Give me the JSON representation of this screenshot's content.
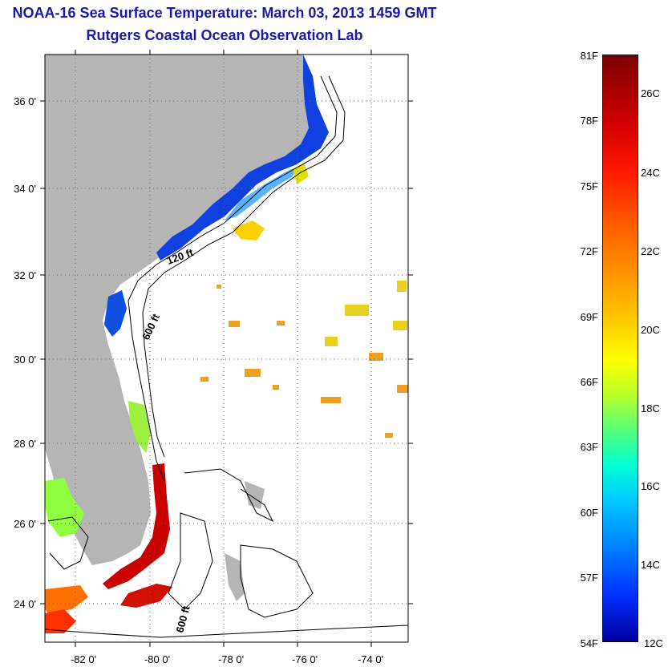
{
  "title": {
    "line1": "NOAA-16 Sea Surface Temperature:  March 03, 2013 1459 GMT",
    "line2": "Rutgers Coastal Ocean Observation Lab"
  },
  "map": {
    "y_ticks": [
      "36 0'",
      "34 0'",
      "32 0'",
      "30 0'",
      "28 0'",
      "26 0'",
      "24 0'"
    ],
    "x_ticks": [
      "-82 0'",
      "-80 0'",
      "-78 0'",
      "-76 0'",
      "-74 0'"
    ],
    "contour_labels": {
      "c120": "120 ft",
      "c600a": "600 ft",
      "c600b": "600 ft"
    }
  },
  "colorbar": {
    "fahrenheit": [
      "81F",
      "78F",
      "75F",
      "72F",
      "69F",
      "66F",
      "63F",
      "60F",
      "57F",
      "54F"
    ],
    "celsius": [
      "26C",
      "24C",
      "22C",
      "20C",
      "18C",
      "16C",
      "14C",
      "12C"
    ],
    "colors": {
      "hot": "#a30000",
      "cold": "#00009e",
      "land": "#b5b5b5",
      "title": "#1a1aa8"
    }
  }
}
